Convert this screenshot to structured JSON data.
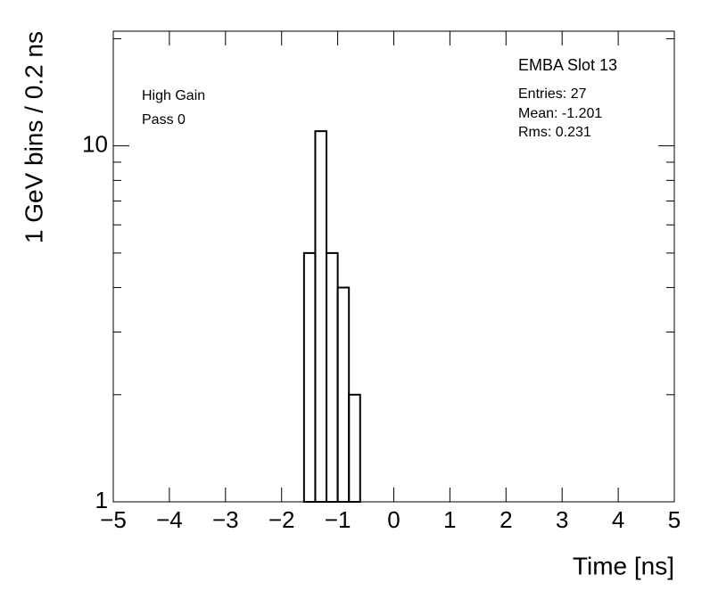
{
  "chart_data": {
    "type": "histogram",
    "x_label": "Time [ns]",
    "y_label": "1 GeV bins / 0.2 ns",
    "bins": [
      -1.6,
      -1.4,
      -1.2,
      -1.0,
      -0.8,
      -0.6
    ],
    "values": [
      5,
      11,
      5,
      4,
      2
    ],
    "color": "#000000",
    "xlim": [
      -5,
      5
    ],
    "ylim": [
      1,
      21
    ],
    "log_y": true,
    "xticks": [
      {
        "value": -5,
        "label": "−5"
      },
      {
        "value": -4,
        "label": "−4"
      },
      {
        "value": -3,
        "label": "−3"
      },
      {
        "value": -2,
        "label": "−2"
      },
      {
        "value": -1,
        "label": "−1"
      },
      0,
      1,
      2,
      3,
      4,
      5
    ],
    "yticks": [
      1,
      10
    ],
    "yminorticks": [
      2,
      3,
      4,
      5,
      6,
      7,
      8,
      9,
      20
    ],
    "annotations": [
      "High Gain",
      "Pass 0"
    ],
    "stats_title": "EMBA Slot 13",
    "stats": [
      "Entries: 27",
      "Mean: -1.201",
      "Rms: 0.231"
    ]
  }
}
